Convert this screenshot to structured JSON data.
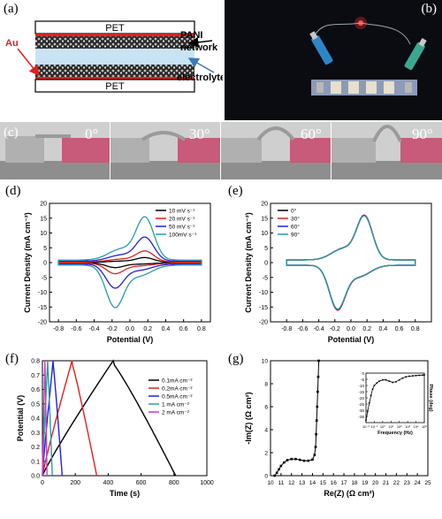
{
  "panel_labels": {
    "a": "(a)",
    "b": "(b)",
    "c": "(c)",
    "d": "(d)",
    "e": "(e)",
    "f": "(f)",
    "g": "(g)"
  },
  "schematic": {
    "top_layer": "PET",
    "bottom_layer": "PET",
    "au_label": "Au",
    "pani_label_1": "PANI",
    "pani_label_2": "network",
    "electrolyte_label": "electrolyte",
    "colors": {
      "pet": "#ffffff",
      "au": "#e02020",
      "pani": "#2a2a2a",
      "electrolyte": "#c8e4f4"
    }
  },
  "photo_c": {
    "angles": [
      "0°",
      "30°",
      "60°",
      "90°"
    ]
  },
  "chart_data": [
    {
      "id": "d",
      "type": "line",
      "xlabel": "Potential (V)",
      "ylabel": "Current Density (mA cm⁻²)",
      "xlim": [
        -0.9,
        0.9
      ],
      "ylim": [
        -20,
        20
      ],
      "xticks": [
        -0.8,
        -0.6,
        -0.4,
        -0.2,
        0.0,
        0.2,
        0.4,
        0.6,
        0.8
      ],
      "yticks": [
        -20,
        -15,
        -10,
        -5,
        0,
        5,
        10,
        15,
        20
      ],
      "legend_position": "top-right",
      "series": [
        {
          "name": "10 mV s⁻¹",
          "color": "#000000",
          "peak_anodic": 1.8,
          "peak_cathodic": -1.8
        },
        {
          "name": "20 mV s⁻¹",
          "color": "#e02020",
          "peak_anodic": 4.2,
          "peak_cathodic": -4.0
        },
        {
          "name": "50 mV s⁻¹",
          "color": "#2020e0",
          "peak_anodic": 9.2,
          "peak_cathodic": -9.2
        },
        {
          "name": "100mV s⁻¹",
          "color": "#2a9d9d",
          "peak_anodic": 16.5,
          "peak_cathodic": -16.2
        }
      ]
    },
    {
      "id": "e",
      "type": "line",
      "xlabel": "Potential (V)",
      "ylabel": "Current Density (mA cm⁻²)",
      "xlim": [
        -1.0,
        1.0
      ],
      "ylim": [
        -20,
        20
      ],
      "xticks": [
        -0.8,
        -0.6,
        -0.4,
        -0.2,
        0.0,
        0.2,
        0.4,
        0.6,
        0.8
      ],
      "yticks": [
        -20,
        -15,
        -10,
        -5,
        0,
        5,
        10,
        15,
        20
      ],
      "legend_position": "top-left",
      "series": [
        {
          "name": "0°",
          "color": "#000000",
          "peak_anodic": 17.0,
          "peak_cathodic": -17.0
        },
        {
          "name": "30°",
          "color": "#e02020",
          "peak_anodic": 17.1,
          "peak_cathodic": -17.1
        },
        {
          "name": "60°",
          "color": "#2020e0",
          "peak_anodic": 16.9,
          "peak_cathodic": -16.8
        },
        {
          "name": "90°",
          "color": "#2a9d9d",
          "peak_anodic": 16.8,
          "peak_cathodic": -16.7
        }
      ]
    },
    {
      "id": "f",
      "type": "line",
      "xlabel": "Time (s)",
      "ylabel": "Potential (V)",
      "xlim": [
        0,
        1000
      ],
      "ylim": [
        0,
        0.8
      ],
      "xticks": [
        0,
        200,
        400,
        600,
        800,
        1000
      ],
      "yticks": [
        0.0,
        0.1,
        0.2,
        0.3,
        0.4,
        0.5,
        0.6,
        0.7,
        0.8
      ],
      "legend_position": "top-right",
      "series": [
        {
          "name": "0.1mA cm⁻²",
          "color": "#000000",
          "charge_end": 430,
          "discharge_end": 810
        },
        {
          "name": "0.2mA cm⁻²",
          "color": "#e02020",
          "charge_end": 180,
          "discharge_end": 330
        },
        {
          "name": "0.5mA cm⁻²",
          "color": "#2020e0",
          "charge_end": 65,
          "discharge_end": 120
        },
        {
          "name": "1  mA cm⁻²",
          "color": "#2a9d9d",
          "charge_end": 32,
          "discharge_end": 60
        },
        {
          "name": "2  mA cm⁻²",
          "color": "#c040c0",
          "charge_end": 15,
          "discharge_end": 28
        }
      ]
    },
    {
      "id": "g",
      "type": "scatter",
      "xlabel": "Re(Z) (Ω cm²)",
      "ylabel": "-Im(Z) (Ω cm²)",
      "xlim": [
        10,
        25
      ],
      "ylim": [
        0,
        10
      ],
      "xticks": [
        10,
        11,
        12,
        13,
        14,
        15,
        16,
        17,
        18,
        19,
        20,
        21,
        22,
        23,
        24,
        25
      ],
      "yticks": [
        0,
        2,
        4,
        6,
        8,
        10
      ],
      "x": [
        10.4,
        10.6,
        10.8,
        11.0,
        11.3,
        11.6,
        12.0,
        12.4,
        12.8,
        13.2,
        13.6,
        14.0,
        14.2,
        14.3,
        14.35,
        14.4,
        14.45,
        14.5,
        14.55,
        14.6
      ],
      "y": [
        0.0,
        0.25,
        0.55,
        0.85,
        1.15,
        1.35,
        1.45,
        1.45,
        1.38,
        1.3,
        1.3,
        1.4,
        1.8,
        2.5,
        3.6,
        4.8,
        6.0,
        7.3,
        8.6,
        10.0
      ],
      "inset": {
        "xlabel": "Frequency (Hz)",
        "ylabel": "Phase (deg)",
        "ylim": [
          -40,
          0
        ],
        "yticks": [
          0,
          -5,
          -10,
          -15,
          -20,
          -25,
          -30,
          -35
        ],
        "xticks": [
          "10⁻²",
          "10⁻¹",
          "10⁰",
          "10¹",
          "10²",
          "10³",
          "10⁴",
          "10⁵"
        ],
        "log_f": [
          -2.0,
          -1.8,
          -1.6,
          -1.4,
          -1.2,
          -1.0,
          -0.7,
          -0.4,
          0.0,
          0.4,
          0.8,
          1.2,
          1.6,
          2.0,
          2.4,
          2.8,
          3.2,
          3.6,
          4.0,
          4.4,
          4.8,
          5.0
        ],
        "phase": [
          -38,
          -31,
          -24,
          -18,
          -13,
          -10,
          -8,
          -6.5,
          -5.5,
          -5.5,
          -6.5,
          -7.5,
          -7,
          -5.5,
          -4,
          -3,
          -2.5,
          -2.2,
          -2,
          -1.8,
          -1.6,
          -1.5
        ]
      }
    }
  ]
}
